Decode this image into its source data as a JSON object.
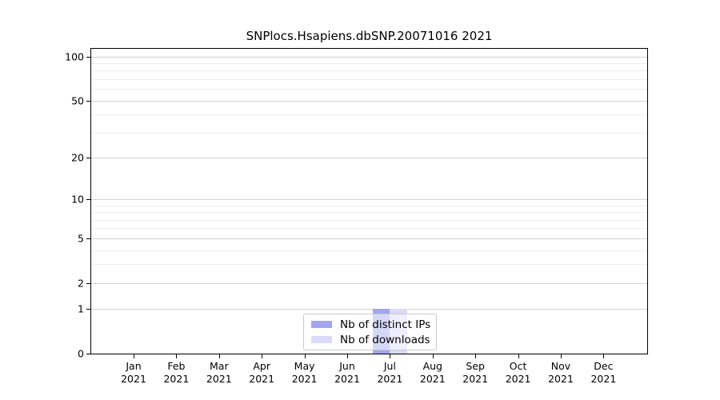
{
  "chart_data": {
    "type": "bar",
    "title": "SNPlocs.Hsapiens.dbSNP.20071016 2021",
    "categories": [
      "Jan",
      "Feb",
      "Mar",
      "Apr",
      "May",
      "Jun",
      "Jul",
      "Aug",
      "Sep",
      "Oct",
      "Nov",
      "Dec"
    ],
    "year": "2021",
    "series": [
      {
        "name": "Nb of distinct IPs",
        "color": "#a3a6ee",
        "values": [
          0,
          0,
          0,
          0,
          0,
          0,
          1,
          0,
          0,
          0,
          0,
          0
        ]
      },
      {
        "name": "Nb of downloads",
        "color": "#d9dbf8",
        "values": [
          0,
          0,
          0,
          0,
          0,
          0,
          1,
          0,
          0,
          0,
          0,
          0
        ]
      }
    ],
    "yscale": "log1p",
    "ylim": [
      0,
      113
    ],
    "y_major_ticks": [
      0,
      1,
      2,
      5,
      10,
      20,
      50,
      100
    ],
    "y_minor_gridlines": [
      3,
      4,
      6,
      7,
      8,
      9,
      30,
      40,
      60,
      70,
      80,
      90
    ],
    "grid": "horizontal-only",
    "legend_position": "inside-bottom-center",
    "axis_color": "#000000",
    "major_grid_color": "#d2d2d2",
    "minor_grid_color": "#ededed",
    "background_color": "#ffffff"
  }
}
